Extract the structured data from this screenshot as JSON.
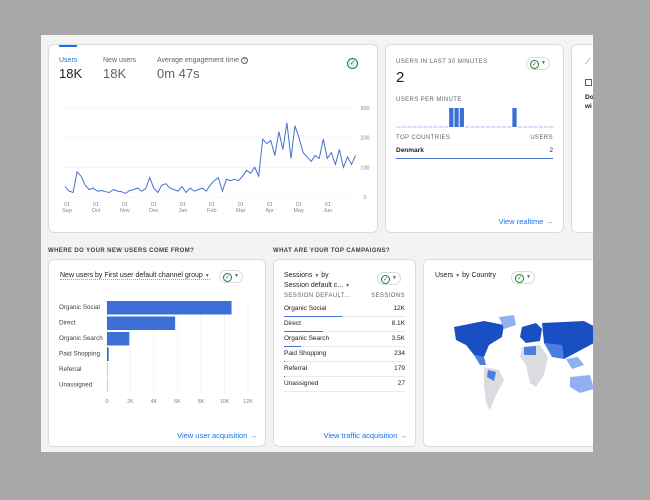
{
  "overview": {
    "metrics": [
      {
        "label": "Users",
        "value": "18K",
        "active": true
      },
      {
        "label": "New users",
        "value": "18K"
      },
      {
        "label": "Average engagement time",
        "value": "0m 47s"
      }
    ],
    "help_icon": "help-circle-icon",
    "chart_data": {
      "type": "line",
      "x_ticks": [
        "01 Sep",
        "01 Oct",
        "01 Nov",
        "01 Dec",
        "01 Jan",
        "01 Feb",
        "01 Mar",
        "01 Apr",
        "01 May",
        "01 Jun"
      ],
      "y_ticks": [
        "0",
        "100",
        "200",
        "300"
      ],
      "ylim": [
        0,
        300
      ],
      "series": [
        {
          "values": [
            35,
            20,
            15,
            85,
            70,
            40,
            25,
            30,
            20,
            22,
            18,
            15,
            25,
            20,
            18,
            12,
            22,
            25,
            30,
            20,
            28,
            65,
            30,
            15,
            40,
            45,
            30,
            25,
            20,
            35,
            15,
            30,
            20,
            25,
            30,
            20,
            40,
            55,
            65,
            20,
            60,
            55,
            60,
            55,
            70,
            90,
            80,
            100,
            70,
            195,
            180,
            190,
            140,
            220,
            160,
            250,
            130,
            240,
            200,
            150,
            135,
            120,
            140,
            130,
            195,
            130,
            150,
            110,
            160,
            100,
            135,
            110,
            140
          ]
        }
      ],
      "color": "#4472ca"
    }
  },
  "realtime": {
    "title": "USERS IN LAST 30 MINUTES",
    "value": "2",
    "per_minute_label": "USERS PER MINUTE",
    "per_minute": [
      0,
      0,
      0,
      0,
      0,
      0,
      0,
      0,
      0,
      0,
      1,
      1,
      1,
      0,
      0,
      0,
      0,
      0,
      0,
      0,
      0,
      0,
      1,
      0,
      0,
      0,
      0,
      0,
      0,
      0
    ],
    "table_headers": [
      "TOP COUNTRIES",
      "USERS"
    ],
    "rows": [
      {
        "country": "Denmark",
        "users": "2"
      }
    ],
    "link": "View realtime"
  },
  "peek_card": {
    "line1": "Do",
    "line2": "wi"
  },
  "acquisition": {
    "section_title": "WHERE DO YOUR NEW USERS COME FROM?",
    "card_title": "New users by First user default channel group",
    "chart_data": {
      "type": "bar",
      "orientation": "horizontal",
      "categories": [
        "Organic Social",
        "Direct",
        "Organic Search",
        "Paid Shopping",
        "Referral",
        "Unassigned"
      ],
      "values": [
        10600,
        5800,
        1900,
        150,
        10,
        5
      ],
      "x_ticks": [
        "0",
        "2K",
        "4K",
        "6K",
        "8K",
        "10K",
        "12K"
      ],
      "xlim": [
        0,
        12000
      ],
      "color": "#3b6fd6"
    },
    "link": "View user acquisition"
  },
  "campaigns": {
    "section_title": "WHAT ARE YOUR TOP CAMPAIGNS?",
    "title_line1": "Sessions",
    "title_by": "by",
    "title_line2": "Session default c...",
    "headers": [
      "SESSION DEFAULT...",
      "SESSIONS"
    ],
    "rows": [
      {
        "label": "Organic Social",
        "value": "12K",
        "share": 1
      },
      {
        "label": "Direct",
        "value": "8.1K",
        "share": 0.68
      },
      {
        "label": "Organic Search",
        "value": "3.5K",
        "share": 0.29
      },
      {
        "label": "Paid Shopping",
        "value": "234",
        "share": 0.02
      },
      {
        "label": "Referral",
        "value": "179",
        "share": 0.015
      },
      {
        "label": "Unassigned",
        "value": "27",
        "share": 0
      }
    ],
    "link": "View traffic acquisition"
  },
  "country": {
    "title_a": "Users",
    "title_b": "by Country",
    "map_colors": [
      "#1a4fc4",
      "#4a7fe0",
      "#8fb2ef",
      "#dadce0"
    ]
  }
}
